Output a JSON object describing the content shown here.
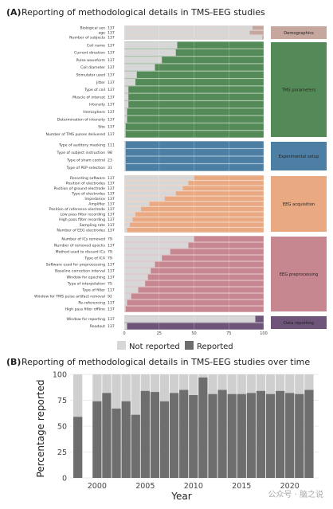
{
  "panel_a": {
    "letter": "(A)",
    "title": "Reporting of methodological details in TMS-EEG studies",
    "colors": {
      "not_reported": "#d7d7d7"
    },
    "legend": {
      "not_reported": "Not reported",
      "reported": "Reported"
    }
  },
  "panel_b": {
    "letter": "(B)",
    "title": "Reporting of methodological details in TMS-EEG studies over time",
    "ylabel": "Percentage reported",
    "xlabel": "Year",
    "colors": {
      "bar": "#6e6e6e",
      "bar_bg": "#cfcfcf"
    }
  },
  "watermark": "公众号 · 脑之说",
  "chart_data": [
    {
      "type": "bar",
      "orientation": "horizontal",
      "stacked": true,
      "xlim": [
        0,
        100
      ],
      "xticks": [
        0,
        25,
        50,
        75,
        100
      ],
      "legend_position": "bottom",
      "groups": [
        {
          "name": "Demographics",
          "color": "#c5a79e",
          "rows": [
            {
              "label": "Biological sex",
              "n": "137",
              "reported": 92
            },
            {
              "label": "age",
              "n": "137",
              "reported": 90
            },
            {
              "label": "Number of subjects",
              "n": "137",
              "reported": 99
            }
          ]
        },
        {
          "name": "TMS parameters",
          "color": "#548a57",
          "rows": [
            {
              "label": "Coil name",
              "n": "137",
              "reported": 38
            },
            {
              "label": "Current direction",
              "n": "137",
              "reported": 37
            },
            {
              "label": "Pulse waveform",
              "n": "137",
              "reported": 27
            },
            {
              "label": "Coil diameter",
              "n": "137",
              "reported": 22
            },
            {
              "label": "Stimulator used",
              "n": "137",
              "reported": 9
            },
            {
              "label": "Jitter",
              "n": "137",
              "reported": 8
            },
            {
              "label": "Type of coil",
              "n": "137",
              "reported": 3
            },
            {
              "label": "Muscle of interest",
              "n": "137",
              "reported": 3
            },
            {
              "label": "Intensity",
              "n": "137",
              "reported": 3
            },
            {
              "label": "Hemisphere",
              "n": "137",
              "reported": 2
            },
            {
              "label": "Determination of intensity",
              "n": "137",
              "reported": 2
            },
            {
              "label": "Site",
              "n": "137",
              "reported": 1
            },
            {
              "label": "Number of TMS pulses delivered",
              "n": "137",
              "reported": 1
            }
          ]
        },
        {
          "name": "Experimental setup",
          "color": "#4d7fa5",
          "rows": [
            {
              "label": "Type of auditory masking",
              "n": "111",
              "reported": 1
            },
            {
              "label": "Type of subject instruction",
              "n": "98",
              "reported": 1
            },
            {
              "label": "Type of sham control",
              "n": "23",
              "reported": 1
            },
            {
              "label": "Type of PEP selection",
              "n": "31",
              "reported": 1
            }
          ]
        },
        {
          "name": "EEG acquisition",
          "color": "#e8a983",
          "rows": [
            {
              "label": "Recording software",
              "n": "137",
              "reported": 50
            },
            {
              "label": "Position of electrodes",
              "n": "137",
              "reported": 46
            },
            {
              "label": "Position of ground electrode",
              "n": "137",
              "reported": 42
            },
            {
              "label": "Type of electrodes",
              "n": "137",
              "reported": 37
            },
            {
              "label": "Impedance",
              "n": "137",
              "reported": 29
            },
            {
              "label": "Amplifier",
              "n": "137",
              "reported": 18
            },
            {
              "label": "Position of reference electrode",
              "n": "137",
              "reported": 12
            },
            {
              "label": "Low pass filter recording",
              "n": "137",
              "reported": 8
            },
            {
              "label": "High pass filter recording",
              "n": "137",
              "reported": 6
            },
            {
              "label": "Sampling rate",
              "n": "137",
              "reported": 4
            },
            {
              "label": "Number of EEG electrodes",
              "n": "137",
              "reported": 2
            }
          ]
        },
        {
          "name": "EEG preprocessing",
          "color": "#c78790",
          "rows": [
            {
              "label": "Number of ICs removed",
              "n": "79",
              "reported": 50
            },
            {
              "label": "Number of removed epochs",
              "n": "137",
              "reported": 46
            },
            {
              "label": "Method used to discard ICs",
              "n": "79",
              "reported": 33
            },
            {
              "label": "Type of ICA",
              "n": "79",
              "reported": 27
            },
            {
              "label": "Software used for preprocessing",
              "n": "137",
              "reported": 22
            },
            {
              "label": "Baseline correction interval",
              "n": "137",
              "reported": 19
            },
            {
              "label": "Window for epoching",
              "n": "137",
              "reported": 17
            },
            {
              "label": "Type of interpolation",
              "n": "75",
              "reported": 15
            },
            {
              "label": "Type of filter",
              "n": "117",
              "reported": 10
            },
            {
              "label": "Window for TMS pulse artifact removal",
              "n": "92",
              "reported": 5
            },
            {
              "label": "Re-referencing",
              "n": "137",
              "reported": 2
            },
            {
              "label": "High pass filter offline",
              "n": "137",
              "reported": 1
            }
          ]
        },
        {
          "name": "Data reporting",
          "color": "#6d5478",
          "rows": [
            {
              "label": "Window for reporting",
              "n": "137",
              "reported": 94
            },
            {
              "label": "Readout",
              "n": "137",
              "reported": 2
            }
          ]
        }
      ]
    },
    {
      "type": "bar",
      "x": [
        1998,
        1999,
        2000,
        2001,
        2002,
        2003,
        2004,
        2005,
        2006,
        2007,
        2008,
        2009,
        2010,
        2011,
        2012,
        2013,
        2014,
        2015,
        2016,
        2017,
        2018,
        2019,
        2020,
        2021,
        2022
      ],
      "values": [
        59,
        null,
        74,
        82,
        67,
        74,
        61,
        84,
        83,
        74,
        82,
        85,
        80,
        97,
        81,
        85,
        81,
        81,
        82,
        84,
        81,
        84,
        82,
        81,
        85
      ],
      "ylim": [
        0,
        100
      ],
      "yticks": [
        0,
        25,
        50,
        75,
        100
      ],
      "xticks": [
        2000,
        2005,
        2010,
        2015,
        2020
      ],
      "xlabel": "Year",
      "ylabel": "Percentage reported",
      "grid": true
    }
  ]
}
